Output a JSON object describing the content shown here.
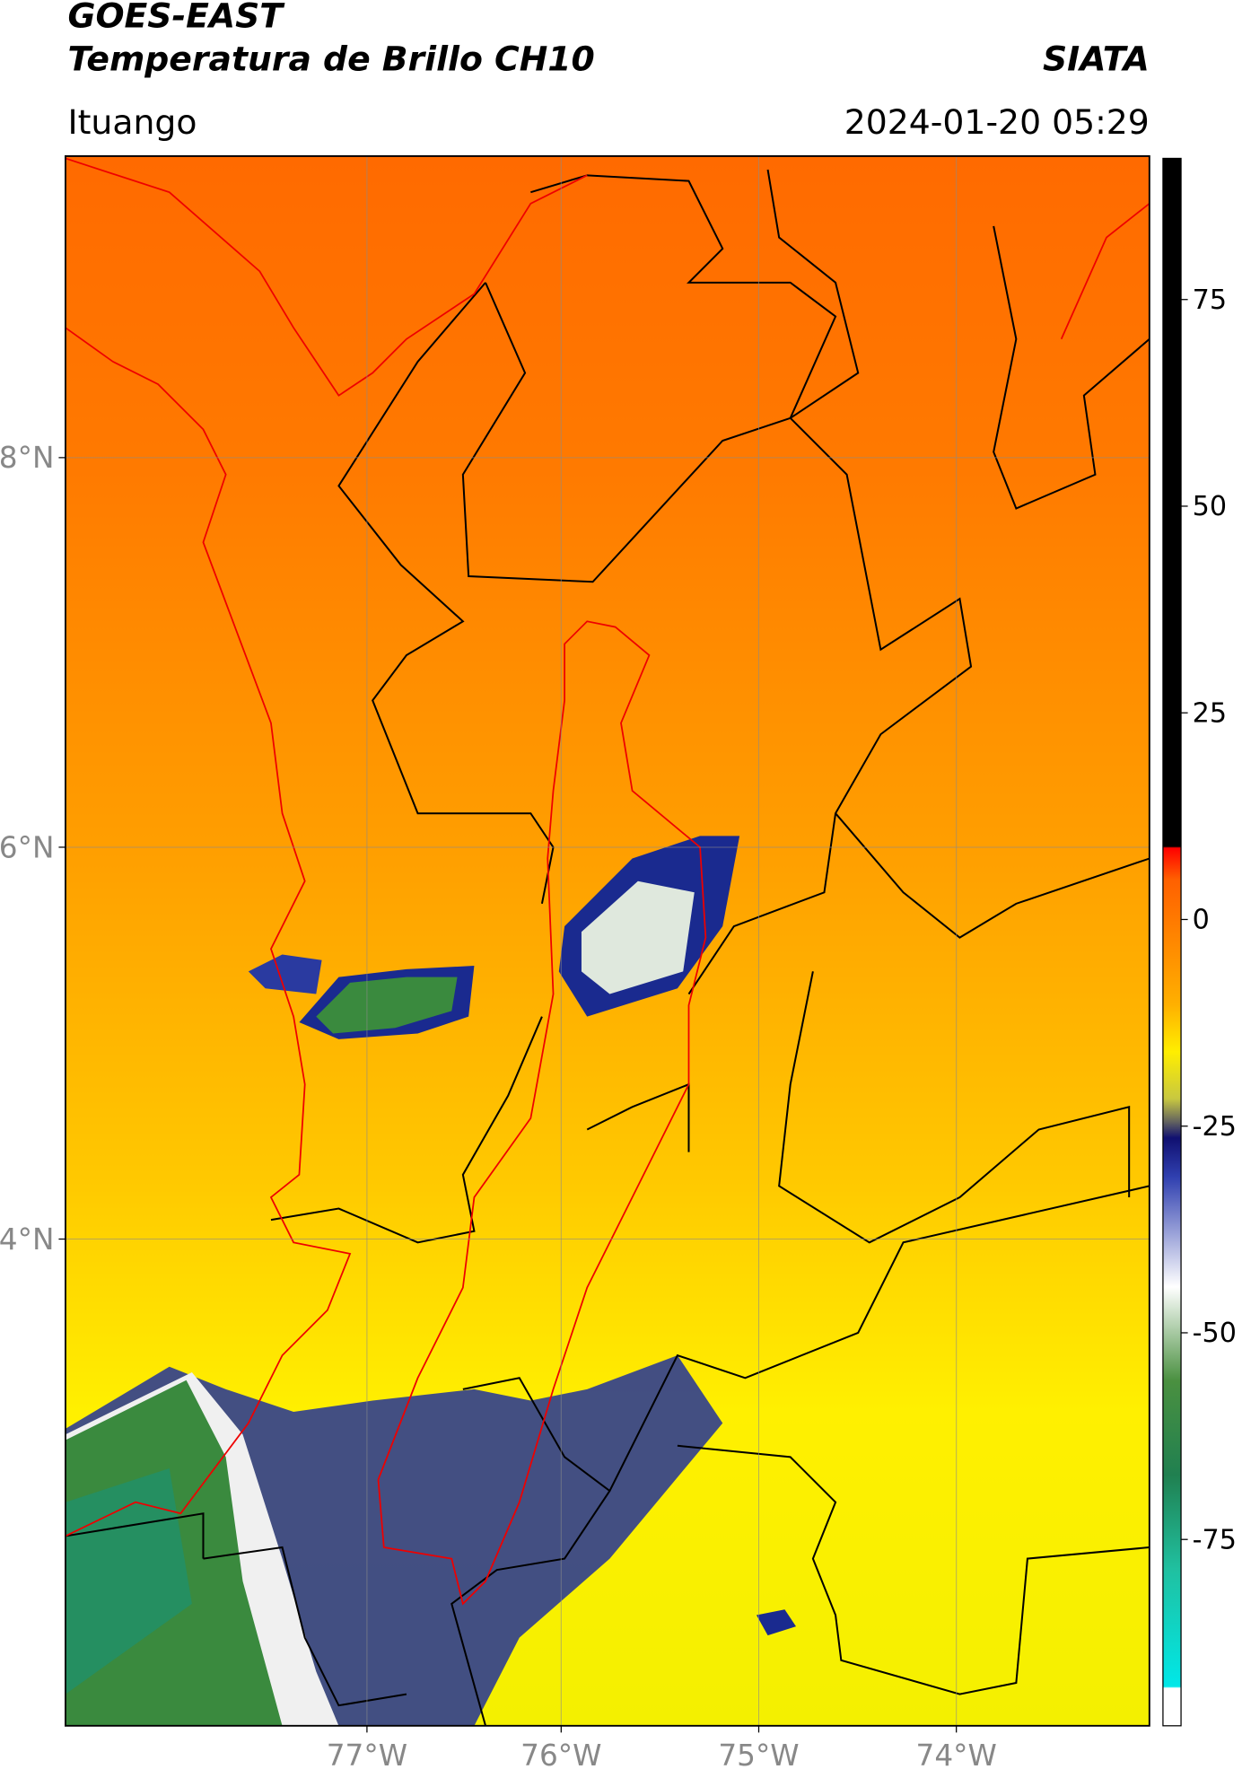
{
  "header": {
    "title": "GOES-EAST",
    "subtitle": "Temperatura de Brillo CH10",
    "source": "SIATA",
    "location": "Ituango",
    "datetime": "2024-01-20 05:29"
  },
  "map": {
    "lat_labels": [
      "8°N",
      "6°N",
      "4°N"
    ],
    "lon_labels": [
      "77°W",
      "76°W",
      "75°W",
      "74°W"
    ]
  },
  "colorbar": {
    "ticks": [
      75,
      50,
      25,
      0,
      -25,
      -50,
      -75
    ]
  }
}
